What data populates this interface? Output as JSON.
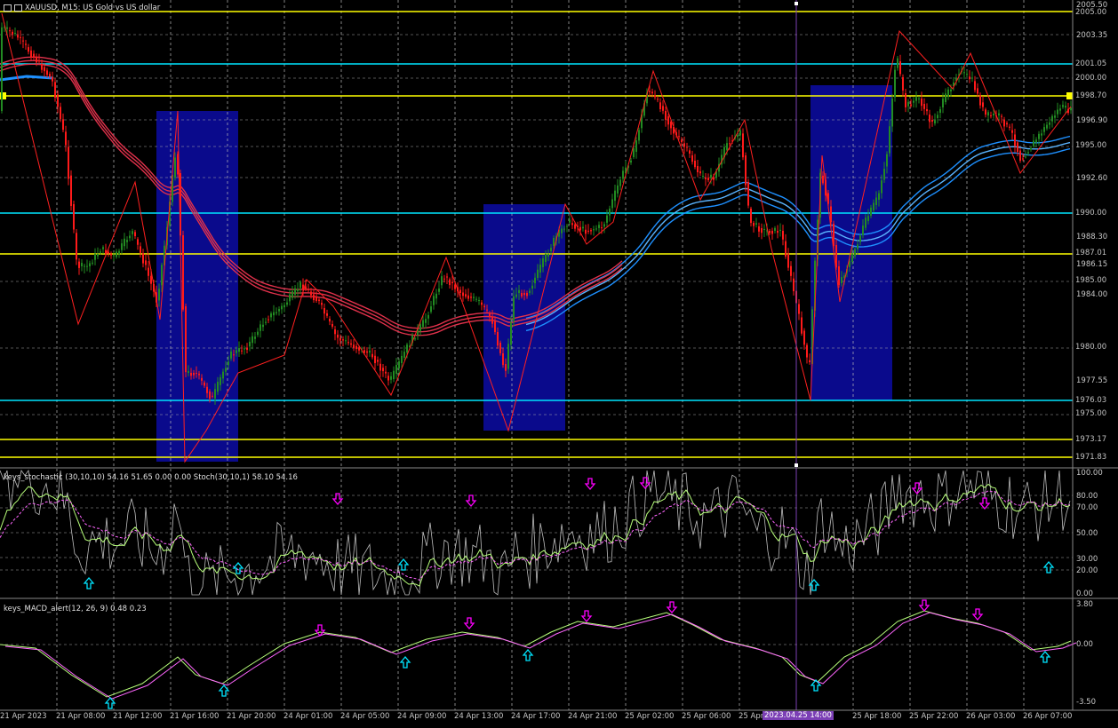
{
  "chart_title": "XAUUSD, M15: US Gold vs US dollar",
  "icons": [
    "grid-icon",
    "chart-icon"
  ],
  "colors": {
    "background": "#000000",
    "bull": "#228b22",
    "bear": "#ff1a1a",
    "grid": "#c0c0c0",
    "cyan_line": "#00e5ff",
    "yellow_line": "#ffff00",
    "blue_box": "#0a0a8c",
    "ma_red": "#e0314b",
    "ma_blue": "#1e90ff",
    "alert_up": "#00e5ff",
    "alert_down": "#ff00ff",
    "cursor": "#7b3fb5"
  },
  "price_axis_labels": [
    "2005.50",
    "2003.35",
    "1996.90",
    "1992.60",
    "1988.30",
    "1986.15",
    "1984.00",
    "1977.55"
  ],
  "price_tags": [
    {
      "text": "2005.00",
      "style": "gray"
    },
    {
      "text": "2001.05",
      "style": "cyan"
    },
    {
      "text": "2000.00",
      "style": "gray"
    },
    {
      "text": "1998.70",
      "style": "yellow"
    },
    {
      "text": "1995.00",
      "style": "gray"
    },
    {
      "text": "1990.00",
      "style": "gray"
    },
    {
      "text": "1987.01",
      "style": "yellow"
    },
    {
      "text": "1985.00",
      "style": "gray"
    },
    {
      "text": "1980.00",
      "style": "gray"
    },
    {
      "text": "1976.03",
      "style": "cyan"
    },
    {
      "text": "1975.00",
      "style": "gray"
    },
    {
      "text": "1973.17",
      "style": "yellow"
    },
    {
      "text": "1971.83",
      "style": "yellow"
    }
  ],
  "stoch_panel": {
    "title": "keys_stochastic (30,10,10) 54.16 51.65 0.00 0.00 Stoch(30,10,1) 58.10 54.16",
    "axis_labels": [
      "100.00",
      "80.00",
      "70.00",
      "50.00",
      "30.00",
      "20.00",
      "0.00"
    ]
  },
  "macd_panel": {
    "title": "keys_MACD_alert(12, 26, 9) 0.48 0.23",
    "axis_labels": [
      "3.80",
      "0.00",
      "-3.50"
    ]
  },
  "time_labels": [
    "21 Apr 2023",
    "21 Apr 08:00",
    "21 Apr 12:00",
    "21 Apr 16:00",
    "21 Apr 20:00",
    "24 Apr 01:00",
    "24 Apr 05:00",
    "24 Apr 09:00",
    "24 Apr 13:00",
    "24 Apr 17:00",
    "24 Apr 21:00",
    "25 Apr 02:00",
    "25 Apr 06:00",
    "25 Apr",
    "25 Apr 18:00",
    "25 Apr 22:00",
    "26 Apr 03:00",
    "26 Apr 07:00"
  ],
  "cursor_time": "2023.04.25 14:00"
}
